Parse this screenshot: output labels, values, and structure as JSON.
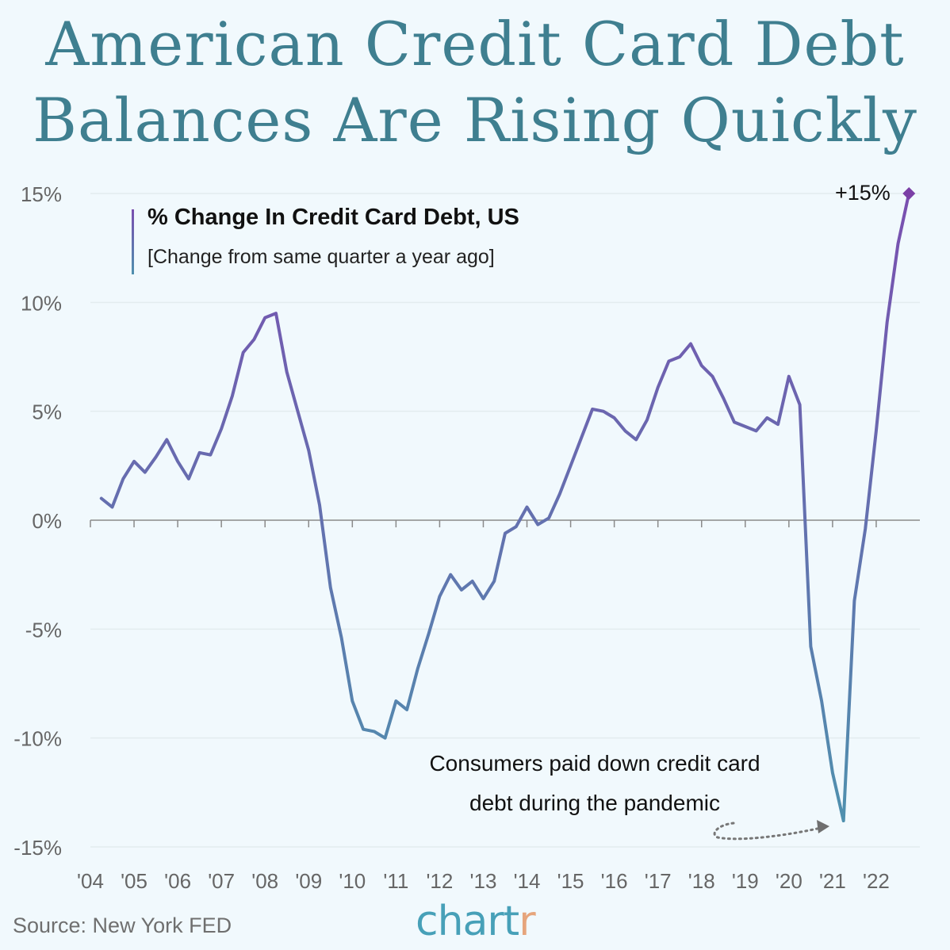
{
  "title": {
    "line1": "American Credit Card Debt",
    "line2": "Balances Are Rising Quickly"
  },
  "source": "Source: New York FED",
  "brand": {
    "main": "chart",
    "accent": "r"
  },
  "colors": {
    "background": "#f1f9fd",
    "title": "#3f7f90",
    "line_start": "#7a4fb0",
    "line_end": "#4f90ae",
    "marker": "#7b3fa6",
    "brand": "#47a0b8",
    "brand_accent": "#e6a57c"
  },
  "chart_data": {
    "type": "line",
    "title": "% Change In Credit Card Debt, US",
    "subtitle": "[Change from same quarter a year ago]",
    "ylabel": "",
    "xlabel": "",
    "ylim": [
      -15,
      15
    ],
    "xlim": [
      2004,
      2023
    ],
    "yticks": [
      15,
      10,
      5,
      0,
      -5,
      -10,
      -15
    ],
    "ytick_labels": [
      "15%",
      "10%",
      "5%",
      "0%",
      "-5%",
      "-10%",
      "-15%"
    ],
    "xticks": [
      2004,
      2005,
      2006,
      2007,
      2008,
      2009,
      2010,
      2011,
      2012,
      2013,
      2014,
      2015,
      2016,
      2017,
      2018,
      2019,
      2020,
      2021,
      2022
    ],
    "xtick_labels": [
      "'04",
      "'05",
      "'06",
      "'07",
      "'08",
      "'09",
      "'10",
      "'11",
      "'12",
      "'13",
      "'14",
      "'15",
      "'16",
      "'17",
      "'18",
      "'19",
      "'20",
      "'21",
      "'22"
    ],
    "grid": true,
    "series": [
      {
        "x": [
          2004.25,
          2004.5,
          2004.75,
          2005.0,
          2005.25,
          2005.5,
          2005.75,
          2006.0,
          2006.25,
          2006.5,
          2006.75,
          2007.0,
          2007.25,
          2007.5,
          2007.75,
          2008.0,
          2008.25,
          2008.5,
          2008.75,
          2009.0,
          2009.25,
          2009.5,
          2009.75,
          2010.0,
          2010.25,
          2010.5,
          2010.75,
          2011.0,
          2011.25,
          2011.5,
          2011.75,
          2012.0,
          2012.25,
          2012.5,
          2012.75,
          2013.0,
          2013.25,
          2013.5,
          2013.75,
          2014.0,
          2014.25,
          2014.5,
          2014.75,
          2015.0,
          2015.25,
          2015.5,
          2015.75,
          2016.0,
          2016.25,
          2016.5,
          2016.75,
          2017.0,
          2017.25,
          2017.5,
          2017.75,
          2018.0,
          2018.25,
          2018.5,
          2018.75,
          2019.0,
          2019.25,
          2019.5,
          2019.75,
          2020.0,
          2020.25,
          2020.5,
          2020.75,
          2021.0,
          2021.25,
          2021.5,
          2021.75,
          2022.0,
          2022.25,
          2022.5,
          2022.75
        ],
        "y": [
          1.0,
          0.6,
          1.9,
          2.7,
          2.2,
          2.9,
          3.7,
          2.7,
          1.9,
          3.1,
          3.0,
          4.2,
          5.7,
          7.7,
          8.3,
          9.3,
          9.5,
          6.8,
          5.0,
          3.2,
          0.7,
          -3.1,
          -5.4,
          -8.3,
          -9.6,
          -9.7,
          -10.0,
          -8.3,
          -8.7,
          -6.8,
          -5.2,
          -3.5,
          -2.5,
          -3.2,
          -2.8,
          -3.6,
          -2.8,
          -0.6,
          -0.3,
          0.6,
          -0.2,
          0.1,
          1.2,
          2.5,
          3.8,
          5.1,
          5.0,
          4.7,
          4.1,
          3.7,
          4.6,
          6.1,
          7.3,
          7.5,
          8.1,
          7.1,
          6.6,
          5.6,
          4.5,
          4.3,
          4.1,
          4.7,
          4.4,
          6.6,
          5.3,
          -5.8,
          -8.3,
          -11.6,
          -13.8,
          -3.7,
          -0.4,
          4.1,
          9.1,
          12.7,
          15.0
        ]
      }
    ],
    "annotations": [
      {
        "text": "+15%"
      },
      {
        "text_line1": "Consumers paid down credit card",
        "text_line2": "debt during the pandemic"
      }
    ]
  }
}
